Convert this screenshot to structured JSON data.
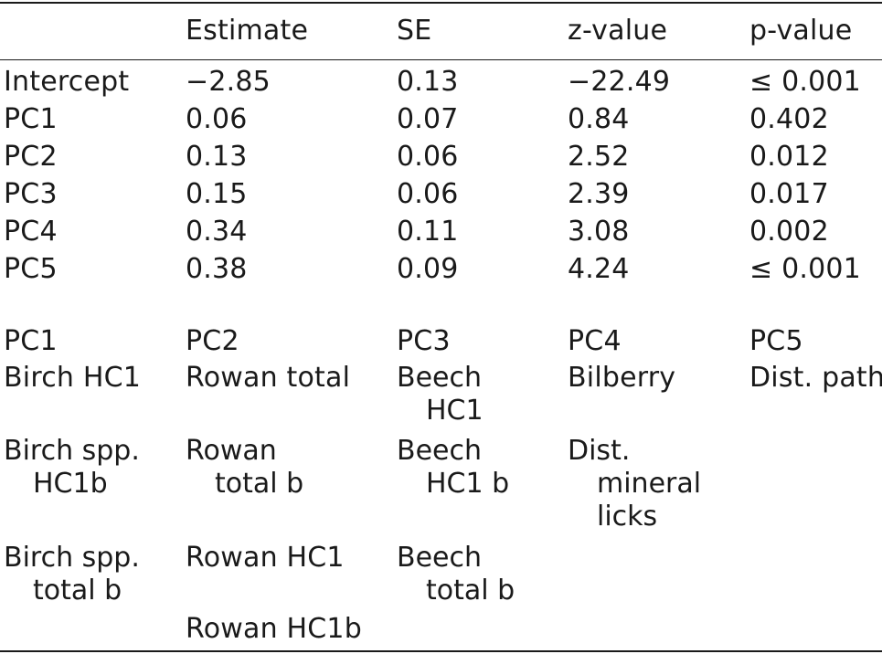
{
  "table": {
    "headers": [
      "",
      "Estimate",
      "SE",
      "z-value",
      "p-value"
    ],
    "coef_rows": [
      [
        "Intercept",
        "−2.85",
        "0.13",
        "−22.49",
        "≤ 0.001"
      ],
      [
        "PC1",
        "0.06",
        "0.07",
        "0.84",
        "0.402"
      ],
      [
        "PC2",
        "0.13",
        "0.06",
        "2.52",
        "0.012"
      ],
      [
        "PC3",
        "0.15",
        "0.06",
        "2.39",
        "0.017"
      ],
      [
        "PC4",
        "0.34",
        "0.11",
        "3.08",
        "0.002"
      ],
      [
        "PC5",
        "0.38",
        "0.09",
        "4.24",
        "≤ 0.001"
      ]
    ],
    "pc_headers": [
      "PC1",
      "PC2",
      "PC3",
      "PC4",
      "PC5"
    ],
    "loadings": {
      "row1": [
        "Birch HC1",
        "Rowan total",
        "Beech",
        "HC1",
        "Bilberry",
        "Dist. path"
      ],
      "row2": [
        "Birch spp.",
        "HC1b",
        "Rowan",
        "total b",
        "Beech",
        "HC1 b",
        "Dist.",
        "mineral",
        "licks"
      ],
      "row3": [
        "Birch spp.",
        "total b",
        "Rowan HC1",
        "Beech",
        "total b"
      ],
      "row4": [
        "Rowan HC1b"
      ]
    }
  }
}
